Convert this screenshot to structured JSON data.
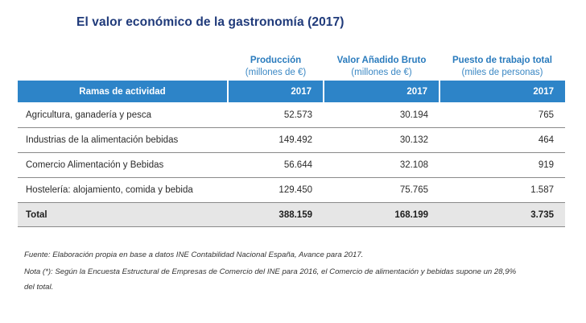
{
  "title": "El valor económico de la gastronomía (2017)",
  "columns": [
    {
      "main": "Producción",
      "sub": "(millones de €)"
    },
    {
      "main": "Valor Añadido Bruto",
      "sub": "(millones de €)"
    },
    {
      "main": "Puesto de trabajo total",
      "sub": "(miles de personas)"
    }
  ],
  "header": {
    "label": "Ramas de actividad",
    "year1": "2017",
    "year2": "2017",
    "year3": "2017"
  },
  "rows": [
    {
      "label": "Agricultura, ganadería y pesca",
      "produccion": "52.573",
      "vab": "30.194",
      "empleo": "765"
    },
    {
      "label": "Industrias de la alimentación bebidas",
      "produccion": "149.492",
      "vab": "30.132",
      "empleo": "464"
    },
    {
      "label": "Comercio Alimentación y Bebidas",
      "produccion": "56.644",
      "vab": "32.108",
      "empleo": "919"
    },
    {
      "label": "Hostelería: alojamiento, comida y bebida",
      "produccion": "129.450",
      "vab": "75.765",
      "empleo": "1.587"
    }
  ],
  "total": {
    "label": "Total",
    "produccion": "388.159",
    "vab": "168.199",
    "empleo": "3.735"
  },
  "notes": {
    "source": "Fuente: Elaboración propia en base a datos INE Contabilidad Nacional España, Avance para 2017.",
    "note": "Nota (*): Según la Encuesta Estructural de Empresas de Comercio del INE para 2016, el Comercio de alimentación y bebidas supone un 28,9% del total."
  }
}
